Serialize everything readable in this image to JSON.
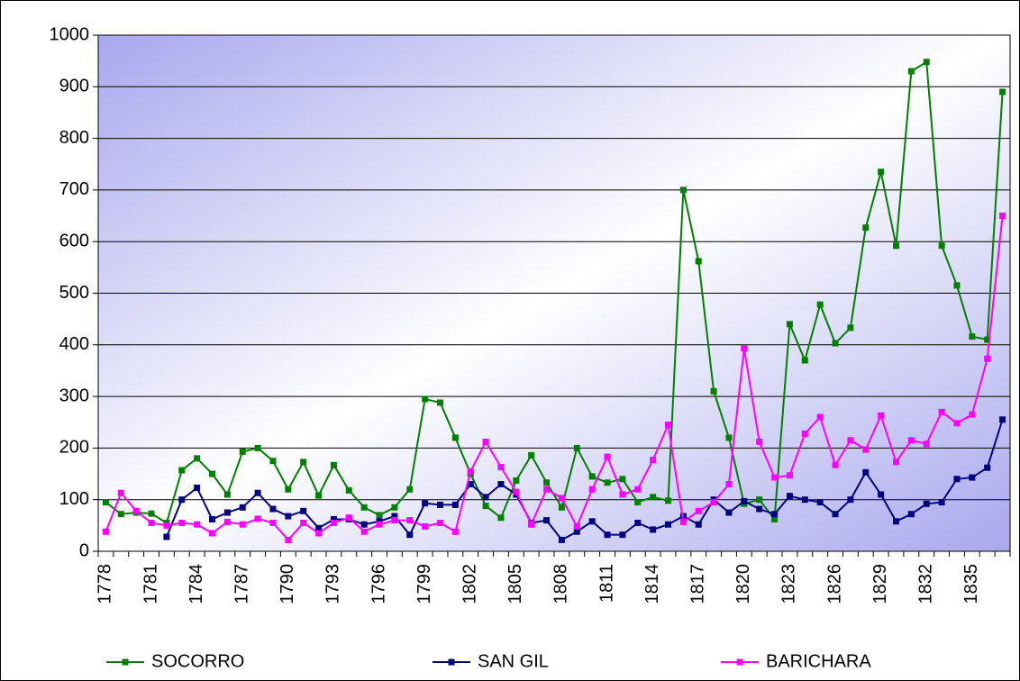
{
  "chart_data": {
    "type": "line",
    "categories": [
      "1778",
      null,
      null,
      "1781",
      null,
      null,
      "1784",
      null,
      null,
      "1787",
      null,
      null,
      "1790",
      null,
      null,
      "1793",
      null,
      null,
      "1796",
      null,
      null,
      "1799",
      null,
      null,
      "1802",
      null,
      null,
      "1805",
      null,
      null,
      "1808",
      null,
      null,
      "1811",
      null,
      null,
      "1814",
      null,
      null,
      "1817",
      null,
      null,
      "1820",
      null,
      null,
      "1823",
      null,
      null,
      "1826",
      null,
      null,
      "1829",
      null,
      null,
      "1832",
      null,
      null,
      "1835",
      null,
      null
    ],
    "series": [
      {
        "name": "SOCORRO",
        "color": "#008000",
        "values": [
          95,
          72,
          75,
          73,
          55,
          157,
          180,
          150,
          110,
          193,
          200,
          175,
          120,
          173,
          108,
          167,
          118,
          85,
          70,
          85,
          120,
          295,
          288,
          220,
          150,
          88,
          65,
          137,
          186,
          133,
          85,
          200,
          145,
          133,
          140,
          95,
          105,
          98,
          700,
          562,
          310,
          220,
          92,
          100,
          62,
          440,
          370,
          478,
          403,
          433,
          627,
          735,
          592,
          930,
          948,
          592,
          515,
          416,
          410,
          890
        ]
      },
      {
        "name": "SAN GIL",
        "color": "#000080",
        "values": [
          null,
          null,
          null,
          null,
          28,
          100,
          123,
          62,
          75,
          85,
          113,
          82,
          68,
          78,
          45,
          62,
          62,
          52,
          58,
          68,
          32,
          93,
          90,
          90,
          130,
          105,
          130,
          110,
          55,
          60,
          22,
          38,
          58,
          32,
          32,
          55,
          42,
          52,
          68,
          52,
          100,
          75,
          97,
          82,
          72,
          107,
          100,
          95,
          72,
          100,
          153,
          110,
          58,
          72,
          92,
          95,
          140,
          143,
          162,
          255
        ]
      },
      {
        "name": "BARICHARA",
        "color": "#ff00ff",
        "values": [
          38,
          113,
          78,
          55,
          50,
          55,
          52,
          35,
          57,
          52,
          63,
          55,
          22,
          55,
          35,
          55,
          65,
          38,
          52,
          60,
          60,
          48,
          55,
          38,
          155,
          212,
          163,
          115,
          52,
          120,
          103,
          48,
          120,
          183,
          110,
          120,
          177,
          245,
          57,
          78,
          95,
          130,
          393,
          212,
          143,
          147,
          228,
          260,
          167,
          215,
          197,
          263,
          173,
          215,
          208,
          270,
          248,
          265,
          373,
          650
        ]
      }
    ],
    "ylim": [
      0,
      1000
    ],
    "yticks": [
      0,
      100,
      200,
      300,
      400,
      500,
      600,
      700,
      800,
      900,
      1000
    ],
    "grid": true,
    "legend": "bottom"
  }
}
